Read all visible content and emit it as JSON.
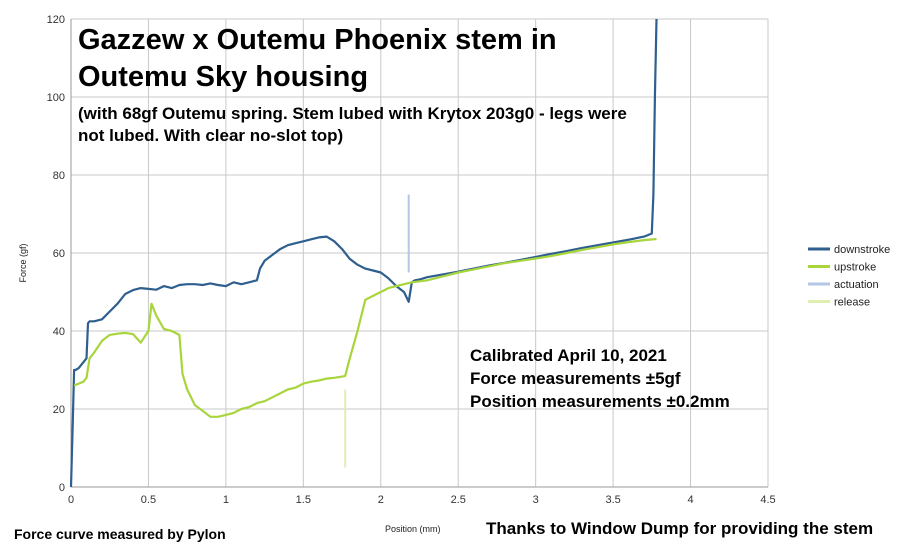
{
  "chart_data": {
    "type": "line",
    "title": "Gazzew x Outemu Phoenix stem in\nOutemu Sky housing",
    "subtitle": "(with 68gf Outemu spring. Stem lubed with Krytox 203g0 - legs were not lubed. With clear no-slot top)",
    "xlabel": "Position (mm)",
    "ylabel": "Force (gf)",
    "xlim": [
      0,
      4.5
    ],
    "ylim": [
      0,
      120
    ],
    "x_ticks": [
      "0",
      "0.5",
      "1",
      "1.5",
      "2",
      "2.5",
      "3",
      "3.5",
      "4",
      "4.5"
    ],
    "y_ticks": [
      "0",
      "20",
      "40",
      "60",
      "80",
      "100",
      "120"
    ],
    "grid": true,
    "legend_position": "right",
    "annotations": [
      "Calibrated April 10, 2021",
      "Force measurements ±5gf",
      "Position measurements ±0.2mm"
    ],
    "series": [
      {
        "name": "downstroke",
        "color": "#2e5f8e",
        "x": [
          0,
          0.01,
          0.02,
          0.03,
          0.05,
          0.08,
          0.1,
          0.11,
          0.12,
          0.15,
          0.2,
          0.25,
          0.3,
          0.35,
          0.4,
          0.45,
          0.5,
          0.55,
          0.6,
          0.65,
          0.7,
          0.75,
          0.8,
          0.85,
          0.9,
          0.95,
          1.0,
          1.05,
          1.1,
          1.15,
          1.2,
          1.22,
          1.25,
          1.3,
          1.35,
          1.4,
          1.45,
          1.5,
          1.55,
          1.6,
          1.65,
          1.7,
          1.75,
          1.8,
          1.85,
          1.9,
          1.95,
          2.0,
          2.05,
          2.1,
          2.15,
          2.18,
          2.2,
          2.22,
          2.25,
          2.3,
          2.4,
          2.5,
          2.6,
          2.7,
          2.8,
          2.9,
          3.0,
          3.1,
          3.2,
          3.3,
          3.4,
          3.5,
          3.6,
          3.7,
          3.75,
          3.76,
          3.77,
          3.78
        ],
        "values": [
          0,
          14,
          30,
          30,
          30.5,
          32,
          33,
          42,
          42.5,
          42.5,
          43,
          45,
          47,
          49.5,
          50.5,
          51,
          50.8,
          50.6,
          51.5,
          51,
          51.8,
          52,
          52,
          51.8,
          52.2,
          51.8,
          51.5,
          52.5,
          52,
          52.5,
          53,
          56,
          58,
          59.5,
          61,
          62,
          62.5,
          63,
          63.5,
          64,
          64.2,
          63,
          61,
          58.5,
          57,
          56,
          55.5,
          55,
          53.5,
          51.5,
          50,
          47.5,
          52.5,
          53,
          53.2,
          53.8,
          54.5,
          55.2,
          56,
          56.8,
          57.5,
          58.2,
          59,
          59.8,
          60.5,
          61.3,
          62,
          62.7,
          63.4,
          64.2,
          65,
          75,
          100,
          120
        ]
      },
      {
        "name": "upstroke",
        "color": "#a8d53c",
        "x": [
          0.02,
          0.05,
          0.08,
          0.1,
          0.12,
          0.15,
          0.2,
          0.25,
          0.3,
          0.35,
          0.4,
          0.45,
          0.5,
          0.52,
          0.55,
          0.6,
          0.65,
          0.7,
          0.72,
          0.75,
          0.8,
          0.85,
          0.9,
          0.95,
          1.0,
          1.05,
          1.1,
          1.15,
          1.2,
          1.25,
          1.3,
          1.35,
          1.4,
          1.45,
          1.5,
          1.55,
          1.6,
          1.65,
          1.7,
          1.75,
          1.77,
          1.8,
          1.85,
          1.9,
          1.95,
          2.0,
          2.05,
          2.1,
          2.15,
          2.2,
          2.3,
          2.4,
          2.5,
          2.6,
          2.7,
          2.8,
          2.9,
          3.0,
          3.1,
          3.2,
          3.3,
          3.4,
          3.5,
          3.6,
          3.7,
          3.78
        ],
        "values": [
          26,
          26.5,
          27,
          28,
          33,
          34.5,
          37.5,
          39,
          39.3,
          39.5,
          39.2,
          37,
          40,
          47,
          44,
          40.5,
          40,
          39,
          29,
          25,
          21,
          19.5,
          18,
          18,
          18.5,
          19,
          20,
          20.5,
          21.5,
          22,
          23,
          24,
          25,
          25.5,
          26.5,
          27,
          27.3,
          27.8,
          28,
          28.3,
          28.5,
          33,
          40,
          48,
          49,
          50,
          51,
          51.5,
          52,
          52.5,
          53,
          54,
          55,
          55.8,
          56.6,
          57.4,
          58,
          58.6,
          59.2,
          60,
          60.8,
          61.5,
          62.2,
          62.8,
          63.3,
          63.6
        ]
      },
      {
        "name": "actuation",
        "color": "#b4c7e7",
        "x": [
          2.18,
          2.18
        ],
        "values": [
          55,
          75
        ]
      },
      {
        "name": "release",
        "color": "#dfefb3",
        "x": [
          1.77,
          1.77
        ],
        "values": [
          5,
          25
        ]
      }
    ]
  },
  "footer": {
    "left": "Force curve measured by Pylon",
    "right": "Thanks to Window Dump for providing the stem"
  }
}
